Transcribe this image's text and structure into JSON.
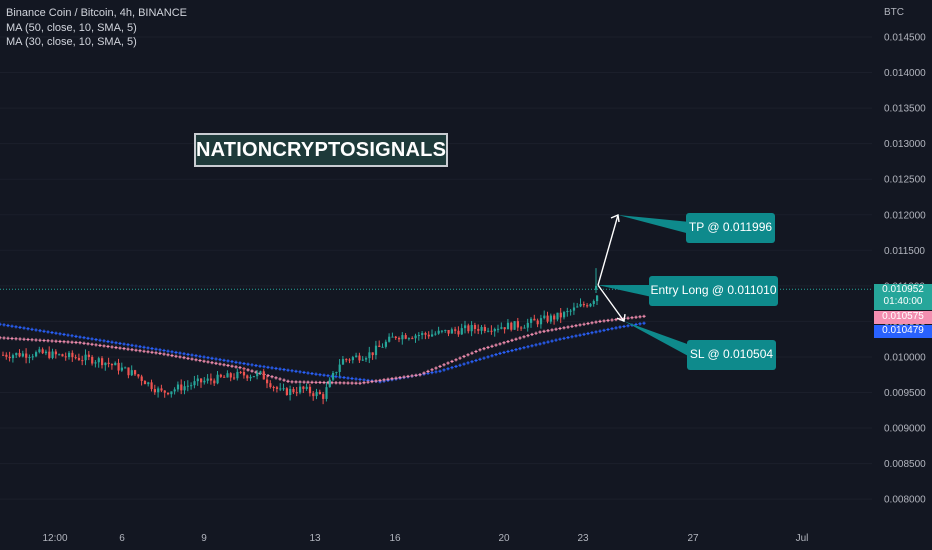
{
  "legend": {
    "symbol": "Binance Coin / Bitcoin, 4h, BINANCE",
    "ma1": "MA (50, close, 10, SMA, 5)",
    "ma2": "MA (30, close, 10, SMA, 5)"
  },
  "watermark": "NATIONCRYPTOSIGNALS",
  "callouts": {
    "tp": "TP @ 0.011996",
    "entry": "Entry Long @ 0.011010",
    "sl": "SL @ 0.010504"
  },
  "price_tags": {
    "last_price": "0.010952",
    "countdown": "01:40:00",
    "ma_pink": "0.010575",
    "ma_blue": "0.010479"
  },
  "colors": {
    "background": "#131722",
    "up": "#26a69a",
    "down": "#ef5350",
    "ma_pink": "#f48fb1",
    "ma_blue": "#2962ff",
    "callout": "#0e8a8c"
  },
  "chart_data": {
    "type": "candlestick",
    "currency": "BTC",
    "y_ticks": [
      "0.014500",
      "0.014000",
      "0.013500",
      "0.013000",
      "0.012500",
      "0.012000",
      "0.011500",
      "0.011000",
      "0.010500",
      "0.010000",
      "0.009500",
      "0.009000",
      "0.008500",
      "0.008000"
    ],
    "ylim": [
      0.0078,
      0.015
    ],
    "x_ticks": [
      "12:00",
      "6",
      "9",
      "13",
      "16",
      "20",
      "23",
      "27",
      "Jul"
    ],
    "series_summary": {
      "price_start": 0.01,
      "price_low": 0.0094,
      "price_last": 0.010952,
      "ma_pink_last": 0.010575,
      "ma_blue_last": 0.010479
    },
    "trade_levels": {
      "tp": 0.011996,
      "entry": 0.01101,
      "sl": 0.010504
    }
  }
}
